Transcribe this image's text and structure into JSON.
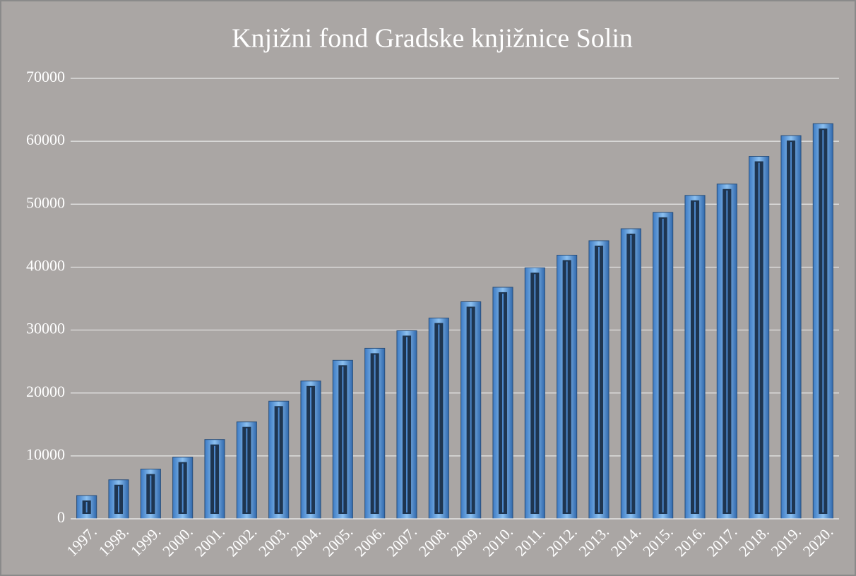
{
  "chart_data": {
    "type": "bar",
    "title": "Knjižni fond Gradske knjižnice Solin",
    "categories": [
      "1997.",
      "1998.",
      "1999.",
      "2000.",
      "2001.",
      "2002.",
      "2003.",
      "2004.",
      "2005.",
      "2006.",
      "2007.",
      "2008.",
      "2009.",
      "2010.",
      "2011.",
      "2012.",
      "2013.",
      "2014.",
      "2015.",
      "2016.",
      "2017.",
      "2018.",
      "2019.",
      "2020."
    ],
    "values": [
      3700,
      6200,
      7900,
      9800,
      12600,
      15400,
      18700,
      21900,
      25200,
      27100,
      29900,
      31900,
      34500,
      36800,
      39900,
      41900,
      44200,
      46100,
      48700,
      51400,
      53200,
      57600,
      60900,
      62800
    ],
    "color": "#5b9bd5",
    "ylim": [
      0,
      70000
    ],
    "yticks": [
      0,
      10000,
      20000,
      30000,
      40000,
      50000,
      60000,
      70000
    ],
    "grid": true
  }
}
